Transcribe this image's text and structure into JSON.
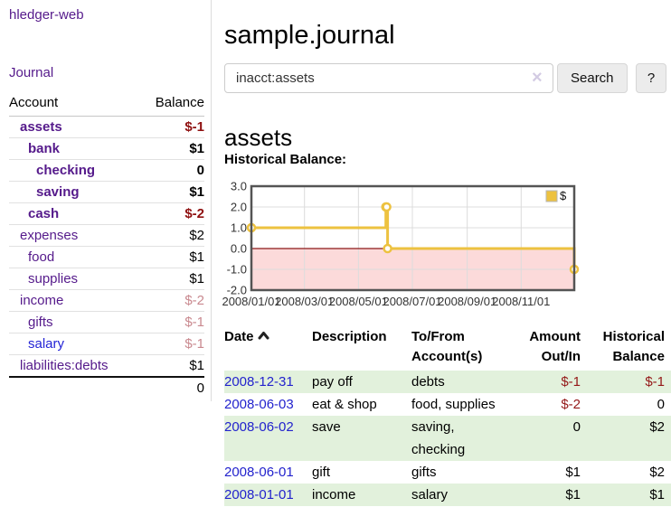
{
  "brand": "hledger-web",
  "nav": {
    "journal": "Journal"
  },
  "sidebar": {
    "header": {
      "account": "Account",
      "balance": "Balance"
    },
    "accounts": [
      {
        "name": "assets",
        "balance": "$-1",
        "level": 1,
        "bold": true,
        "name_color": "purple",
        "balance_tone": "neg-strong"
      },
      {
        "name": "bank",
        "balance": "$1",
        "level": 2,
        "bold": true,
        "name_color": "purple",
        "balance_tone": "pos"
      },
      {
        "name": "checking",
        "balance": "0",
        "level": 3,
        "bold": true,
        "name_color": "purple",
        "balance_tone": "pos"
      },
      {
        "name": "saving",
        "balance": "$1",
        "level": 3,
        "bold": true,
        "name_color": "purple",
        "balance_tone": "pos"
      },
      {
        "name": "cash",
        "balance": "$-2",
        "level": 2,
        "bold": true,
        "name_color": "purple",
        "balance_tone": "neg-strong"
      },
      {
        "name": "expenses",
        "balance": "$2",
        "level": 1,
        "bold": false,
        "name_color": "purple",
        "balance_tone": "pos"
      },
      {
        "name": "food",
        "balance": "$1",
        "level": 2,
        "bold": false,
        "name_color": "purple",
        "balance_tone": "pos"
      },
      {
        "name": "supplies",
        "balance": "$1",
        "level": 2,
        "bold": false,
        "name_color": "purple",
        "balance_tone": "pos"
      },
      {
        "name": "income",
        "balance": "$-2",
        "level": 1,
        "bold": false,
        "name_color": "purple",
        "balance_tone": "neg-muted"
      },
      {
        "name": "gifts",
        "balance": "$-1",
        "level": 2,
        "bold": false,
        "name_color": "purple",
        "balance_tone": "neg-muted"
      },
      {
        "name": "salary",
        "balance": "$-1",
        "level": 2,
        "bold": false,
        "name_color": "blue",
        "balance_tone": "neg-muted"
      },
      {
        "name": "liabilities:debts",
        "balance": "$1",
        "level": 1,
        "bold": false,
        "name_color": "purple",
        "balance_tone": "pos"
      }
    ],
    "total": "0"
  },
  "main": {
    "title": "sample.journal",
    "search": {
      "value": "inacct:assets",
      "clear_icon": "×",
      "search_button": "Search",
      "help_button": "?"
    },
    "account_heading": "assets",
    "chart_heading": "Historical Balance:"
  },
  "chart_data": {
    "type": "line",
    "step": true,
    "title": "Historical Balance:",
    "series": [
      {
        "name": "$",
        "color": "#edc240",
        "points": [
          [
            "2008-01-01",
            1
          ],
          [
            "2008-06-01",
            2
          ],
          [
            "2008-06-02",
            2
          ],
          [
            "2008-06-03",
            0
          ],
          [
            "2008-12-31",
            -1
          ]
        ]
      }
    ],
    "xlim": [
      "2008-01-01",
      "2008-12-31"
    ],
    "ylim": [
      -2,
      3
    ],
    "ytick_labels": [
      "3.0",
      "2.0",
      "1.0",
      "0.0",
      "-1.0",
      "-2.0"
    ],
    "xtick_labels": [
      "2008/01/01",
      "2008/03/01",
      "2008/05/01",
      "2008/07/01",
      "2008/09/01",
      "2008/11/01"
    ],
    "legend_position": "top-right",
    "grid": true,
    "negative_region_color": "#fcdada",
    "zero_line_color": "#8b1717",
    "plot_border_color": "#545454",
    "grid_color": "#dcdcdc"
  },
  "register": {
    "columns": {
      "date": "Date",
      "description": "Description",
      "tofrom": "To/From Account(s)",
      "amount": "Amount Out/In",
      "balance": "Historical Balance"
    },
    "rows": [
      {
        "date": "2008-12-31",
        "description": "pay off",
        "accounts": "debts",
        "amount": "$-1",
        "balance": "$-1",
        "amount_negative": true,
        "balance_negative": true
      },
      {
        "date": "2008-06-03",
        "description": "eat & shop",
        "accounts": "food, supplies",
        "amount": "$-2",
        "balance": "0",
        "amount_negative": true,
        "balance_negative": false
      },
      {
        "date": "2008-06-02",
        "description": "save",
        "accounts": "saving, checking",
        "amount": "0",
        "balance": "$2",
        "amount_negative": false,
        "balance_negative": false
      },
      {
        "date": "2008-06-01",
        "description": "gift",
        "accounts": "gifts",
        "amount": "$1",
        "balance": "$2",
        "amount_negative": false,
        "balance_negative": false
      },
      {
        "date": "2008-01-01",
        "description": "income",
        "accounts": "salary",
        "amount": "$1",
        "balance": "$1",
        "amount_negative": false,
        "balance_negative": false
      }
    ]
  }
}
